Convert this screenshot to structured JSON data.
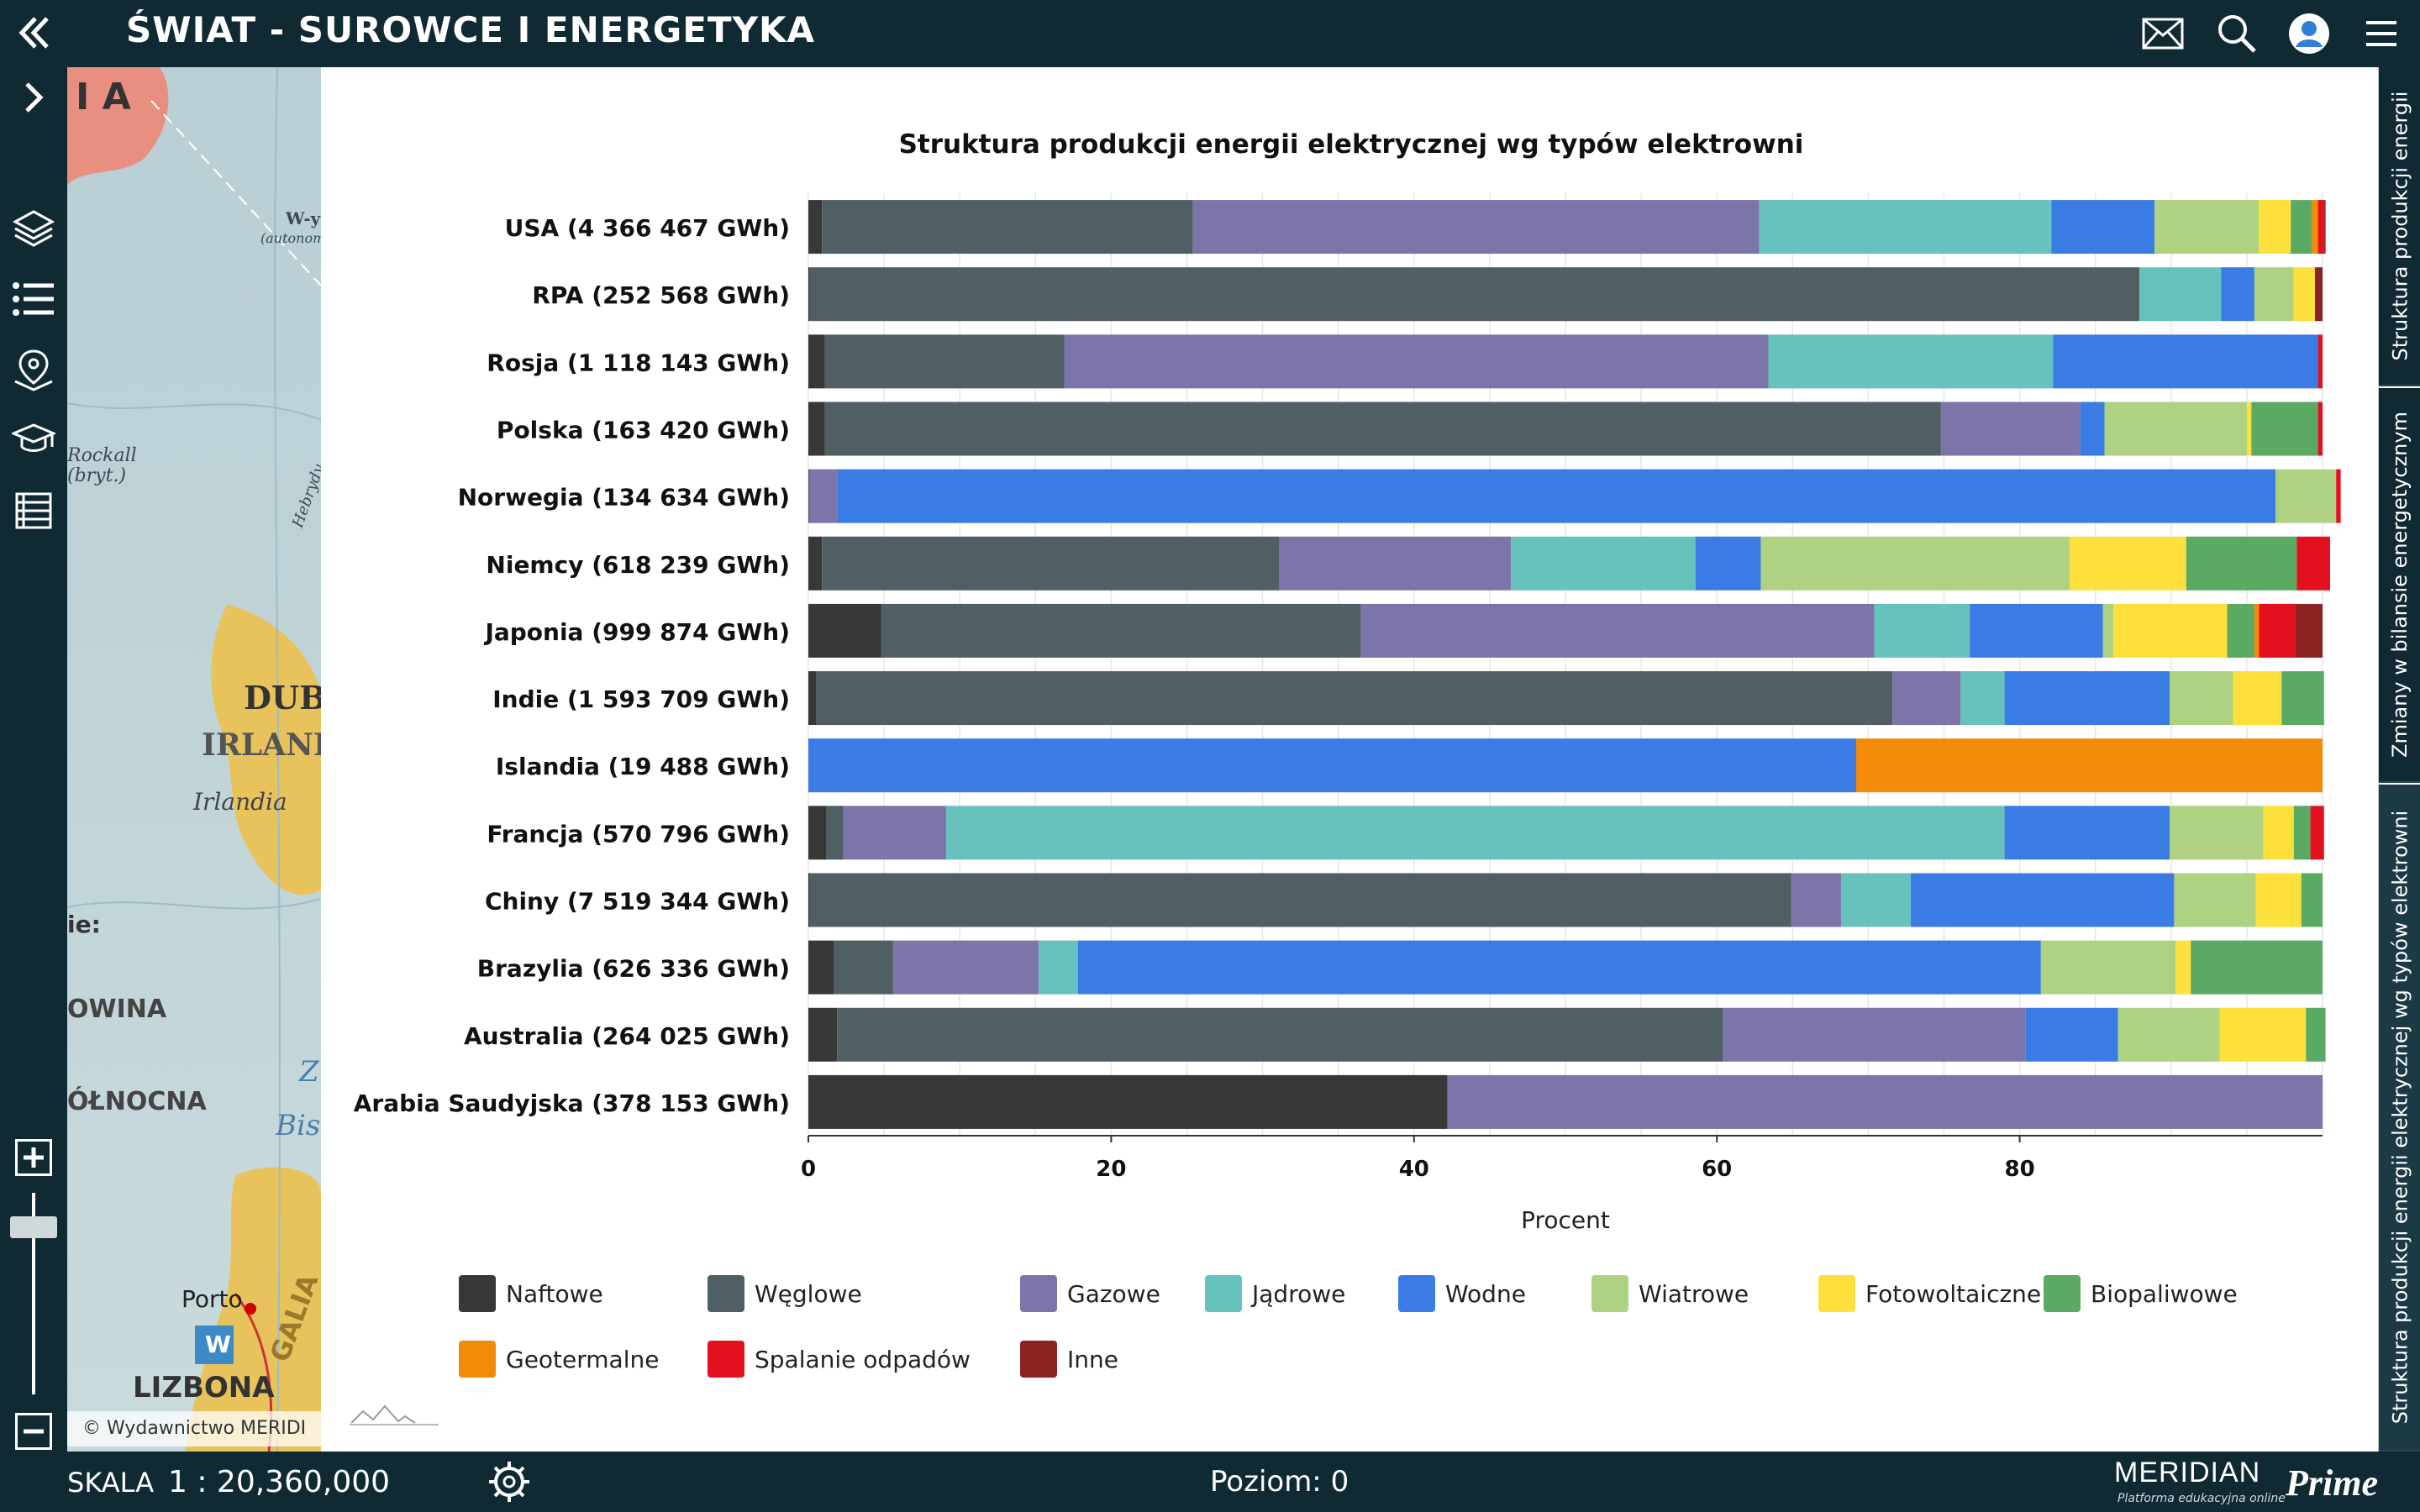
{
  "app": {
    "title": "ŚWIAT - SUROWCE I ENERGETYKA"
  },
  "topbar_icons": [
    "back-icon",
    "mail-icon",
    "search-icon",
    "user-icon",
    "menu-icon"
  ],
  "leftbar_icons": [
    "expand-chevron-icon",
    "layers-icon",
    "legend-list-icon",
    "map-pin-icon",
    "education-cap-icon",
    "table-icon"
  ],
  "map": {
    "labels": [
      "I A",
      "W-y",
      "(autonom.",
      "Rockall",
      "(bryt.)",
      "Hebrydy",
      "DUBLI",
      "IRLANDI",
      "Irlandia",
      "ie:",
      "OWINA",
      "ÓŁNOCNA",
      "Z",
      "Bis",
      "Porto",
      "W",
      "GALIA",
      "LIZBONA"
    ],
    "copyright": "© Wydawnictwo MERIDI"
  },
  "side_tabs": [
    {
      "label": "Struktura produkcji energii"
    },
    {
      "label": "Zmiany w bilansie energetycznym"
    },
    {
      "label": "Struktura produkcji energii elektrycznej wg typów elektrowni"
    }
  ],
  "bottom": {
    "scale_label": "SKALA",
    "scale_value": "1 : 20,360,000",
    "level": "Poziom: 0",
    "brand": "MERIDIAN",
    "brand_sub": "Platforma edukacyjna online",
    "brand_prime": "Prime"
  },
  "colors": {
    "Naftowe": "#383838",
    "Węglowe": "#505f63",
    "Gazowe": "#7b75a9",
    "Jądrowe": "#67c1bd",
    "Wodne": "#3b7be4",
    "Wiatrowe": "#aed182",
    "Fotowoltaiczne": "#fde03b",
    "Biopaliwowe": "#5aaa64",
    "Geotermalne": "#f28a0a",
    "Spalanie odpadów": "#e3111f",
    "Inne": "#8b2323"
  },
  "chart_data": {
    "type": "bar",
    "orientation": "horizontal",
    "stacked": true,
    "title": "Struktura produkcji energii elektrycznej wg typów elektrowni",
    "xlabel": "Procent",
    "ylabel": "",
    "xlim": [
      0,
      100
    ],
    "xticks": [
      0,
      20,
      40,
      60,
      80
    ],
    "categories": [
      "USA (4 366 467 GWh)",
      "RPA (252 568 GWh)",
      "Rosja (1 118 143 GWh)",
      "Polska (163 420 GWh)",
      "Norwegia (134 634 GWh)",
      "Niemcy (618 239 GWh)",
      "Japonia (999 874 GWh)",
      "Indie (1 593 709 GWh)",
      "Islandia (19 488 GWh)",
      "Francja (570 796 GWh)",
      "Chiny (7 519 344 GWh)",
      "Brazylia (626 336 GWh)",
      "Australia (264 025 GWh)",
      "Arabia Saudyjska (378 153 GWh)"
    ],
    "series": [
      {
        "name": "Naftowe",
        "values": [
          0.9,
          0.1,
          1.1,
          1.1,
          0.0,
          0.9,
          4.8,
          0.5,
          0.0,
          1.2,
          0.1,
          1.7,
          1.9,
          42.2
        ]
      },
      {
        "name": "Węglowe",
        "values": [
          24.5,
          87.8,
          15.8,
          73.7,
          0.1,
          30.2,
          31.7,
          71.1,
          0.0,
          1.1,
          64.8,
          3.9,
          58.5,
          0.0
        ]
      },
      {
        "name": "Gazowe",
        "values": [
          37.4,
          0.0,
          46.5,
          9.2,
          1.8,
          15.3,
          33.9,
          4.5,
          0.0,
          6.8,
          3.3,
          9.6,
          20.0,
          57.8
        ]
      },
      {
        "name": "Jądrowe",
        "values": [
          19.3,
          5.4,
          18.8,
          0.0,
          0.0,
          12.2,
          6.3,
          2.9,
          0.0,
          69.9,
          4.6,
          2.6,
          0.0,
          0.0
        ]
      },
      {
        "name": "Wodne",
        "values": [
          6.8,
          2.2,
          17.5,
          1.6,
          95.0,
          4.3,
          8.8,
          10.9,
          69.2,
          10.9,
          17.4,
          63.6,
          6.1,
          0.0
        ]
      },
      {
        "name": "Wiatrowe",
        "values": [
          6.9,
          2.6,
          0.0,
          9.4,
          4.0,
          20.4,
          0.7,
          4.2,
          0.0,
          6.2,
          5.4,
          8.9,
          6.7,
          0.0
        ]
      },
      {
        "name": "Fotowoltaiczne",
        "values": [
          2.1,
          1.4,
          0.0,
          0.3,
          0.0,
          7.7,
          7.5,
          3.2,
          0.0,
          2.0,
          3.0,
          1.0,
          5.7,
          0.0
        ]
      },
      {
        "name": "Biopaliwowe",
        "values": [
          1.4,
          0.0,
          0.0,
          4.4,
          0.0,
          7.3,
          1.8,
          2.8,
          0.0,
          1.1,
          1.4,
          8.7,
          1.3,
          0.0
        ]
      },
      {
        "name": "Geotermalne",
        "values": [
          0.4,
          0.0,
          0.0,
          0.0,
          0.0,
          0.0,
          0.3,
          0.0,
          30.8,
          0.0,
          0.0,
          0.0,
          0.0,
          0.0
        ]
      },
      {
        "name": "Spalanie odpadów",
        "values": [
          0.4,
          0.0,
          0.3,
          0.3,
          0.3,
          2.2,
          2.4,
          0.0,
          0.0,
          0.9,
          0.0,
          0.0,
          0.0,
          0.0
        ]
      },
      {
        "name": "Inne",
        "values": [
          0.1,
          0.5,
          0.0,
          0.0,
          0.0,
          0.0,
          1.8,
          0.0,
          0.0,
          0.0,
          0.0,
          0.0,
          0.0,
          0.0
        ]
      }
    ],
    "legend": [
      "Naftowe",
      "Węglowe",
      "Gazowe",
      "Jądrowe",
      "Wodne",
      "Wiatrowe",
      "Fotowoltaiczne",
      "Biopaliwowe",
      "Geotermalne",
      "Spalanie odpadów",
      "Inne"
    ],
    "legend_position": "bottom"
  }
}
